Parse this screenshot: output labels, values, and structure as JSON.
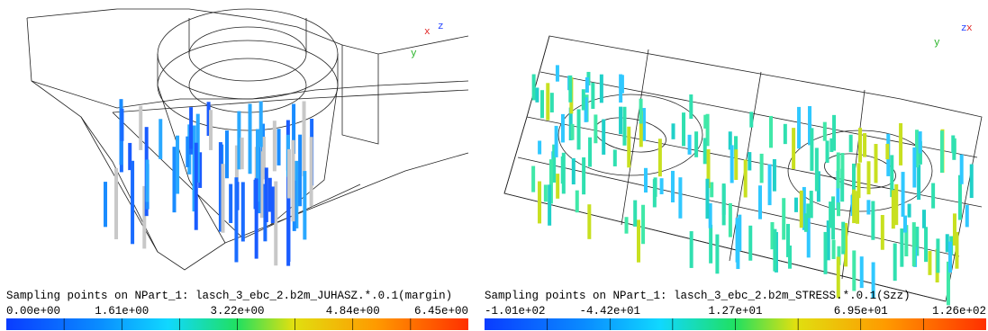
{
  "panels": [
    {
      "caption": "Sampling points on NPart_1: lasch_3_ebc_2.b2m_JUHASZ.*.0.1(margin)",
      "colorbar_labels": [
        "0.00e+00",
        "1.61e+00",
        "3.22e+00",
        "4.84e+00",
        "6.45e+00"
      ],
      "triad": [
        "x",
        "z",
        "y"
      ]
    },
    {
      "caption": "Sampling points on NPart_1: lasch_3_ebc_2.b2m_STRESS.*.0.1(Szz)",
      "colorbar_labels": [
        "-1.01e+02",
        "-4.42e+01",
        "1.27e+01",
        "6.95e+01",
        "1.26e+02"
      ],
      "triad": [
        "z",
        "x",
        "y"
      ]
    }
  ]
}
